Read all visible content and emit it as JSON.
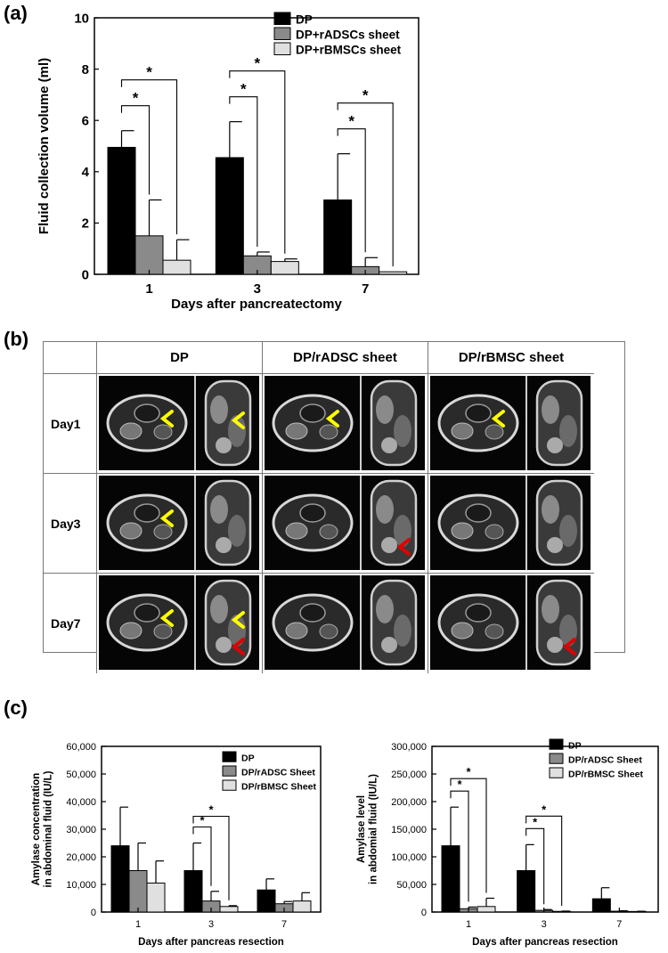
{
  "panels": {
    "a": "(a)",
    "b": "(b)",
    "c": "(c)"
  },
  "colors": {
    "dp": "#000000",
    "adsc": "#8a8a8a",
    "bmsc": "#e0e0e0",
    "arrow_yellow": "#ffff00",
    "arrow_red": "#e00000"
  },
  "chart_data": [
    {
      "type": "bar",
      "panel": "a",
      "title": "",
      "xlabel": "Days after pancreatectomy",
      "ylabel": "Fluid collection volume (ml)",
      "categories": [
        "1",
        "3",
        "7"
      ],
      "ylim": [
        0,
        10
      ],
      "yticks": [
        "0",
        "2",
        "4",
        "6",
        "8",
        "10"
      ],
      "legend_position": "top-right",
      "series": [
        {
          "name": "DP",
          "values": [
            4.95,
            4.55,
            2.9
          ],
          "errors": [
            0.65,
            1.4,
            1.8
          ]
        },
        {
          "name": "DP+rADSCs sheet",
          "values": [
            1.5,
            0.72,
            0.3
          ],
          "errors": [
            1.4,
            0.15,
            0.35
          ]
        },
        {
          "name": "DP+rBMSCs sheet",
          "values": [
            0.55,
            0.5,
            0.1
          ],
          "errors": [
            0.8,
            0.1,
            0.0
          ]
        }
      ],
      "significance": [
        {
          "category": "1",
          "from": "DP",
          "to": "DP+rADSCs sheet",
          "label": "*"
        },
        {
          "category": "1",
          "from": "DP",
          "to": "DP+rBMSCs sheet",
          "label": "*"
        },
        {
          "category": "3",
          "from": "DP",
          "to": "DP+rADSCs sheet",
          "label": "*"
        },
        {
          "category": "3",
          "from": "DP",
          "to": "DP+rBMSCs sheet",
          "label": "*"
        },
        {
          "category": "7",
          "from": "DP",
          "to": "DP+rADSCs sheet",
          "label": "*"
        },
        {
          "category": "7",
          "from": "DP",
          "to": "DP+rBMSCs sheet",
          "label": "*"
        }
      ]
    },
    {
      "type": "bar",
      "panel": "c-left",
      "title": "",
      "xlabel": "Days after pancreas resection",
      "ylabel": "Amylase concentration\nin abdominal fluid (IU/L)",
      "categories": [
        "1",
        "3",
        "7"
      ],
      "ylim": [
        0,
        60000
      ],
      "yticks": [
        "0",
        "10,000",
        "20,000",
        "30,000",
        "40,000",
        "50,000",
        "60,000"
      ],
      "legend_position": "top-right",
      "series": [
        {
          "name": "DP",
          "values": [
            24000,
            15000,
            8000
          ],
          "errors": [
            14000,
            10000,
            4000
          ]
        },
        {
          "name": "DP/rADSC Sheet",
          "values": [
            15000,
            4000,
            3000
          ],
          "errors": [
            10000,
            3500,
            800
          ]
        },
        {
          "name": "DP/rBMSC Sheet",
          "values": [
            10500,
            2000,
            4000
          ],
          "errors": [
            8000,
            300,
            3000
          ]
        }
      ],
      "significance": [
        {
          "category": "3",
          "from": "DP",
          "to": "DP/rADSC Sheet",
          "label": "*"
        },
        {
          "category": "3",
          "from": "DP",
          "to": "DP/rBMSC Sheet",
          "label": "*"
        }
      ]
    },
    {
      "type": "bar",
      "panel": "c-right",
      "title": "",
      "xlabel": "Days after pancreas resection",
      "ylabel": "Amylase level\nin abdomial fluid (IU/L)",
      "categories": [
        "1",
        "3",
        "7"
      ],
      "ylim": [
        0,
        300000
      ],
      "yticks": [
        "0",
        "50,000",
        "100,000",
        "150,000",
        "200,000",
        "250,000",
        "300,000"
      ],
      "legend_position": "top-right",
      "series": [
        {
          "name": "DP",
          "values": [
            120000,
            75000,
            24000
          ],
          "errors": [
            70000,
            47000,
            20000
          ]
        },
        {
          "name": "DP/rADSC Sheet",
          "values": [
            6000,
            3000,
            1500
          ],
          "errors": [
            3000,
            1500,
            800
          ]
        },
        {
          "name": "DP/rBMSC Sheet",
          "values": [
            10000,
            1200,
            1000
          ],
          "errors": [
            15000,
            500,
            400
          ]
        }
      ],
      "significance": [
        {
          "category": "1",
          "from": "DP",
          "to": "DP/rADSC Sheet",
          "label": "*"
        },
        {
          "category": "1",
          "from": "DP",
          "to": "DP/rBMSC Sheet",
          "label": "*"
        },
        {
          "category": "3",
          "from": "DP",
          "to": "DP/rADSC Sheet",
          "label": "*"
        },
        {
          "category": "3",
          "from": "DP",
          "to": "DP/rBMSC Sheet",
          "label": "*"
        }
      ]
    }
  ],
  "mri_table": {
    "columns": [
      "DP",
      "DP/rADSC sheet",
      "DP/rBMSC sheet"
    ],
    "rows": [
      "Day1",
      "Day3",
      "Day7"
    ],
    "arrows": [
      {
        "row": 0,
        "col": 0,
        "view": "axial",
        "color": "yellow"
      },
      {
        "row": 0,
        "col": 0,
        "view": "coronal",
        "color": "yellow"
      },
      {
        "row": 0,
        "col": 1,
        "view": "axial",
        "color": "yellow"
      },
      {
        "row": 0,
        "col": 2,
        "view": "axial",
        "color": "yellow"
      },
      {
        "row": 1,
        "col": 0,
        "view": "axial",
        "color": "yellow"
      },
      {
        "row": 1,
        "col": 1,
        "view": "coronal",
        "color": "red"
      },
      {
        "row": 2,
        "col": 0,
        "view": "axial",
        "color": "yellow"
      },
      {
        "row": 2,
        "col": 0,
        "view": "coronal",
        "color": "yellow"
      },
      {
        "row": 2,
        "col": 0,
        "view": "coronal",
        "color": "red"
      },
      {
        "row": 2,
        "col": 2,
        "view": "coronal",
        "color": "red"
      }
    ]
  }
}
